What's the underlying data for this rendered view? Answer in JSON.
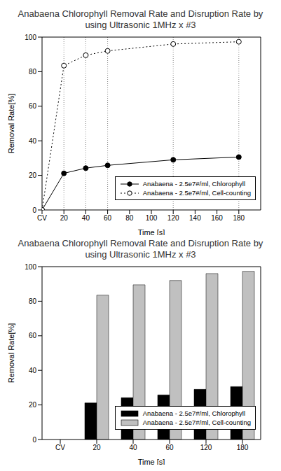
{
  "chart_data": [
    {
      "type": "line",
      "title": "Anabaena Chlorophyll Removal Rate and Disruption Rate by using Ultrasonic 1MHz x #3",
      "x_label": "Time [s]",
      "y_label": "Removal Rate[%]",
      "x": [
        0,
        20,
        40,
        60,
        120,
        180
      ],
      "series": [
        {
          "name": "Anabaena - 2.5e7#/ml, Chlorophyll",
          "color": "#000000",
          "marker": "filled_circle",
          "line_style": "solid",
          "values": [
            0,
            21.2,
            24.2,
            25.8,
            29,
            30.6
          ]
        },
        {
          "name": "Anabaena - 2.5e7#/ml, Cell-counting",
          "color": "#000000",
          "marker": "open_circle",
          "line_style": "dotted",
          "values": [
            0,
            83.5,
            89.5,
            92,
            96,
            97.3
          ]
        }
      ],
      "xlim": [
        0,
        200
      ],
      "xticks": [
        {
          "value": 0,
          "label": "CV"
        },
        20,
        40,
        60,
        80,
        100,
        120,
        140,
        160,
        180
      ],
      "ylim": [
        0,
        100
      ],
      "yticks": [
        0,
        20,
        40,
        60,
        80,
        100
      ],
      "grid": true,
      "legend": "lower right"
    },
    {
      "type": "bar",
      "title": "Anabaena Chlorophyll Removal Rate and Disruption Rate by using Ultrasonic 1MHz x #3",
      "x_label": "Time [s]",
      "y_label": "Removal Rate[%]",
      "categories": [
        "CV",
        "20",
        "40",
        "60",
        "120",
        "180"
      ],
      "series": [
        {
          "name": "Anabaena - 2.5e7#/ml, Chlorophyll",
          "color": "#000000",
          "values": [
            0,
            21.2,
            24.2,
            25.8,
            29,
            30.6
          ]
        },
        {
          "name": "Anabaena - 2.5e7#/ml, Cell-counting",
          "color": "#c0c0c0",
          "values": [
            0,
            83.5,
            89.5,
            92,
            96,
            97.3
          ]
        }
      ],
      "ylim": [
        0,
        100
      ],
      "yticks": [
        0,
        20,
        40,
        60,
        80,
        100
      ],
      "grid": false,
      "legend": "lower right"
    }
  ]
}
